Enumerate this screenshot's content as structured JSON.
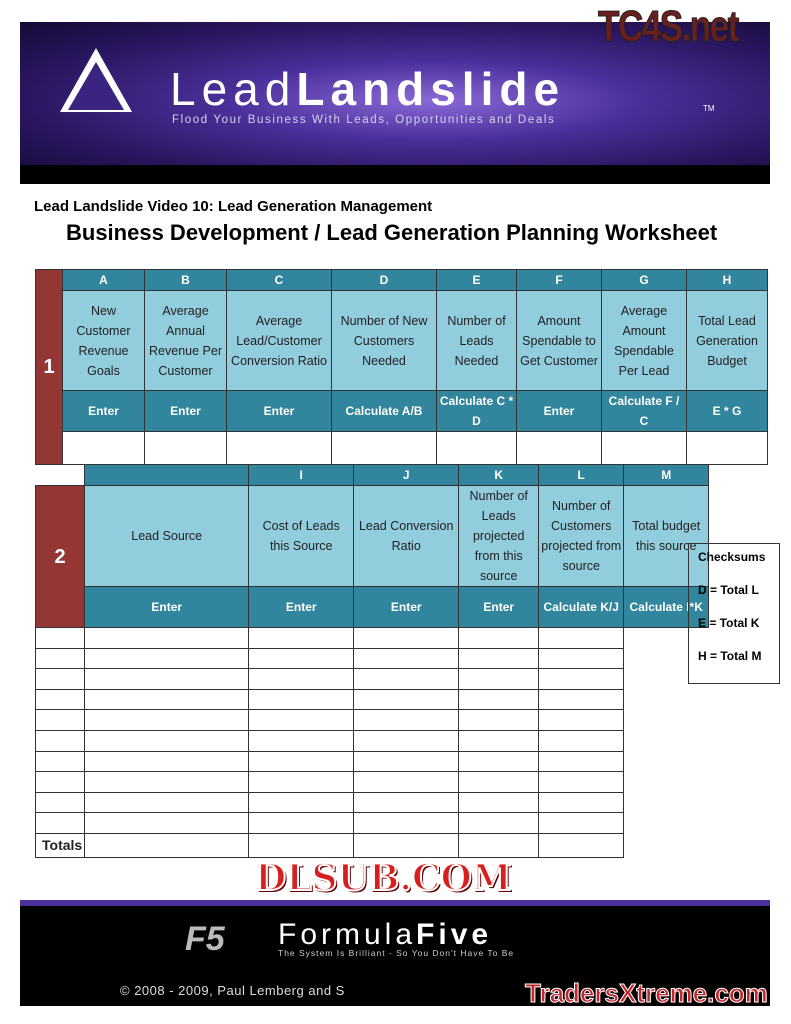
{
  "banner": {
    "brand_light": "Lead",
    "brand_bold": "Landslide",
    "tm": "TM",
    "tagline": "Flood Your Business With Leads, Opportunities and Deals"
  },
  "watermarks": {
    "top": "TC4S.net",
    "middle": "DLSUB.COM",
    "bottom": "TradersXtreme.com"
  },
  "subtitle": "Lead Landslide Video 10: Lead Generation Management",
  "title": "Business Development / Lead Generation Planning Worksheet",
  "section1": {
    "number": "1",
    "columns": [
      {
        "letter": "A",
        "desc": "New Customer Revenue Goals",
        "action": "Enter"
      },
      {
        "letter": "B",
        "desc": "Average Annual Revenue Per Customer",
        "action": "Enter"
      },
      {
        "letter": "C",
        "desc": "Average Lead/Customer Conversion Ratio",
        "action": "Enter"
      },
      {
        "letter": "D",
        "desc": "Number of New Customers Needed",
        "action": "Calculate A/B"
      },
      {
        "letter": "E",
        "desc": "Number of Leads Needed",
        "action": "Calculate C * D"
      },
      {
        "letter": "F",
        "desc": "Amount Spendable to Get Customer",
        "action": "Enter"
      },
      {
        "letter": "G",
        "desc": "Average Amount Spendable Per Lead",
        "action": "Calculate F / C"
      },
      {
        "letter": "H",
        "desc": "Total Lead Generation Budget",
        "action": "E * G"
      }
    ]
  },
  "section2": {
    "number": "2",
    "columns": [
      {
        "letter": "",
        "desc": "Lead Source",
        "action": "Enter"
      },
      {
        "letter": "I",
        "desc": "Cost of Leads this Source",
        "action": "Enter"
      },
      {
        "letter": "J",
        "desc": "Lead Conversion Ratio",
        "action": "Enter"
      },
      {
        "letter": "K",
        "desc": "Number of Leads projected from this source",
        "action": "Enter"
      },
      {
        "letter": "L",
        "desc": "Number of Customers projected from source",
        "action": "Calculate K/J"
      },
      {
        "letter": "M",
        "desc": "Total budget this source",
        "action": "Calculate I*K"
      }
    ],
    "totals_label": "Totals"
  },
  "checksums": {
    "title": "Checksums",
    "items": [
      "D = Total L",
      "E = Total K",
      "H = Total M"
    ]
  },
  "footer": {
    "logo": "F5",
    "brand_light": "Formula",
    "brand_bold": "Five",
    "tagline": "The System Is Brilliant - So You Don't Have To Be",
    "copyright": "© 2008 - 2009, Paul Lemberg and S"
  },
  "colors": {
    "header_teal": "#31859c",
    "desc_blue": "#92cddd",
    "section_red": "#943634",
    "banner_purple": "#4b2f9a"
  }
}
